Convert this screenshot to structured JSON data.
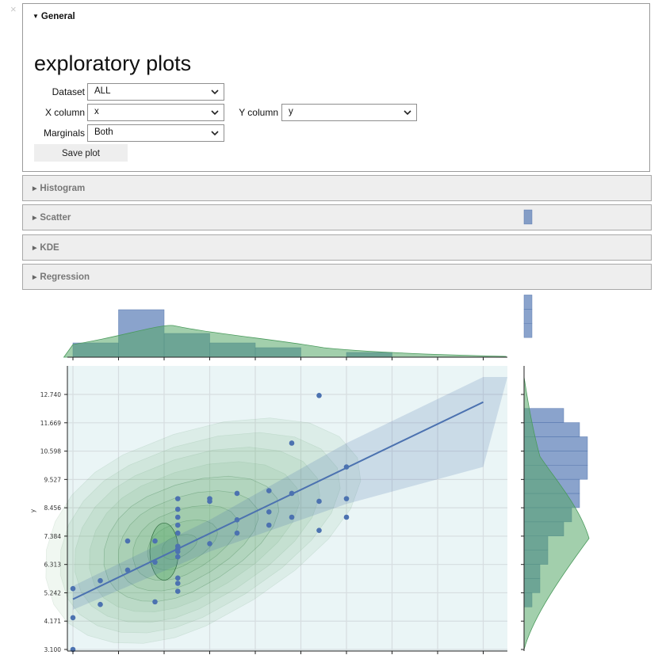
{
  "window": {
    "close_glyph": "×"
  },
  "general": {
    "header": "General",
    "title": "exploratory plots",
    "dataset": {
      "label": "Dataset",
      "value": "ALL"
    },
    "x_column": {
      "label": "X column",
      "value": "x"
    },
    "y_column": {
      "label": "Y column",
      "value": "y"
    },
    "marginals": {
      "label": "Marginals",
      "value": "Both"
    },
    "save_button": "Save plot"
  },
  "sections": [
    "Histogram",
    "Scatter",
    "KDE",
    "Regression"
  ],
  "icons": {
    "expanded": "caret-down-icon",
    "collapsed": "caret-right-icon",
    "select": "chevron-down-icon"
  },
  "colors": {
    "scatter": "#4c72b0",
    "kde": "#55a868",
    "background": "#eaf5f6"
  },
  "chart_data": {
    "type": "scatter",
    "ylabel": "y",
    "xlabel": "",
    "y_ticks": [
      "3.100",
      "4.171",
      "5.242",
      "6.313",
      "7.384",
      "8.456",
      "9.527",
      "10.598",
      "11.669",
      "12.740"
    ],
    "xlim": [
      0,
      9.5
    ],
    "ylim": [
      3.1,
      13.4
    ],
    "points": [
      [
        0,
        3.1
      ],
      [
        0,
        4.3
      ],
      [
        0,
        5.4
      ],
      [
        0.6,
        5.7
      ],
      [
        0.6,
        4.8
      ],
      [
        1.2,
        6.1
      ],
      [
        1.2,
        7.2
      ],
      [
        1.8,
        4.9
      ],
      [
        1.8,
        6.4
      ],
      [
        1.8,
        7.2
      ],
      [
        2.3,
        8.8
      ],
      [
        2.3,
        8.4
      ],
      [
        2.3,
        8.1
      ],
      [
        2.3,
        7.8
      ],
      [
        2.3,
        7.5
      ],
      [
        2.3,
        7.0
      ],
      [
        2.3,
        6.9
      ],
      [
        2.3,
        6.8
      ],
      [
        2.3,
        6.6
      ],
      [
        2.3,
        5.8
      ],
      [
        2.3,
        5.6
      ],
      [
        2.3,
        5.3
      ],
      [
        3.0,
        8.8
      ],
      [
        3.0,
        8.7
      ],
      [
        3.0,
        7.1
      ],
      [
        3.6,
        9.0
      ],
      [
        3.6,
        8.0
      ],
      [
        3.6,
        7.5
      ],
      [
        4.3,
        9.1
      ],
      [
        4.3,
        8.3
      ],
      [
        4.3,
        7.8
      ],
      [
        4.8,
        10.9
      ],
      [
        4.8,
        9.0
      ],
      [
        4.8,
        8.1
      ],
      [
        5.4,
        12.7
      ],
      [
        5.4,
        8.7
      ],
      [
        5.4,
        7.6
      ],
      [
        6.0,
        10.0
      ],
      [
        6.0,
        8.8
      ],
      [
        6.0,
        8.1
      ]
    ],
    "regression": {
      "x": [
        0,
        9
      ],
      "y": [
        5.0,
        12.45
      ]
    },
    "x_histogram": {
      "bin_width": 1.0,
      "bins_start": 0,
      "counts": [
        3,
        10,
        5,
        3,
        2,
        0,
        1
      ]
    },
    "y_histogram": {
      "bin_start": 3.1,
      "bin_width": 0.536,
      "counts": [
        0,
        0,
        0,
        1,
        2,
        2,
        3,
        3,
        5,
        6,
        7,
        7,
        8,
        8,
        8,
        7,
        5,
        0,
        0,
        0,
        0,
        0,
        1,
        1,
        1,
        0,
        0,
        0,
        0,
        0,
        1
      ]
    }
  }
}
